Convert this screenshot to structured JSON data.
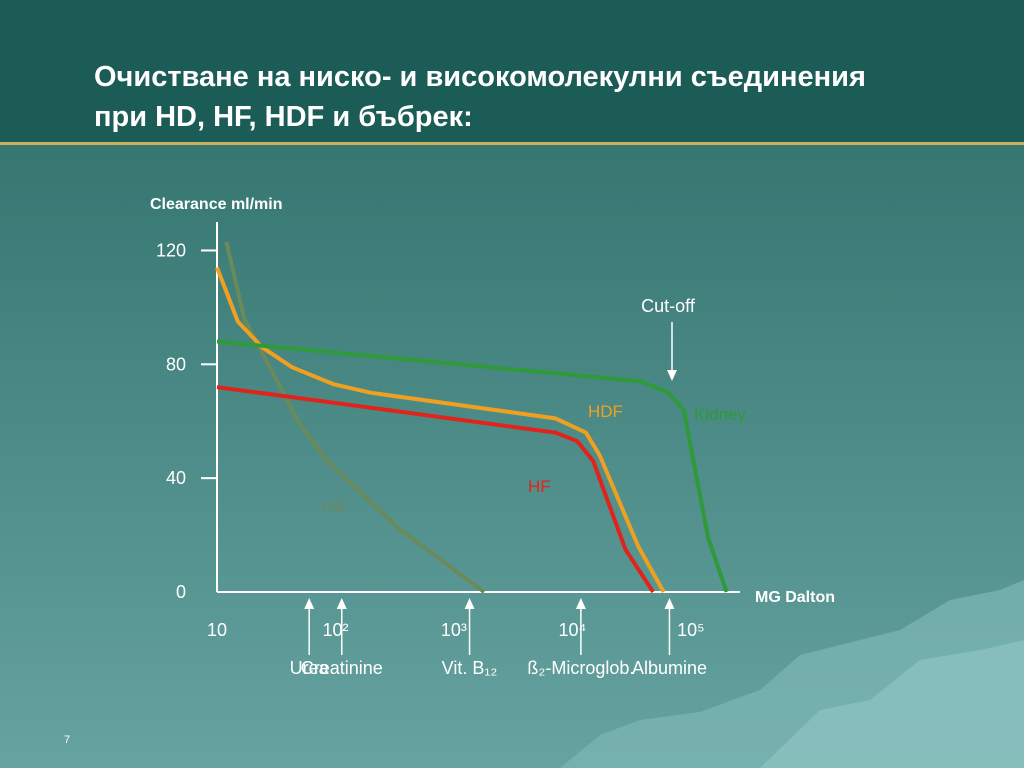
{
  "slide": {
    "title": [
      "Очистване на ниско- и високомолекулни съединения",
      "при  HD, HF, HDF и  бъбрек:"
    ],
    "page_number": "7"
  },
  "chart_data": {
    "type": "line",
    "ylabel": "Clearance ml/min",
    "xlabel": "MG Dalton",
    "xscale": "log",
    "xlim": [
      10,
      260000
    ],
    "ylim": [
      0,
      130
    ],
    "xticks": [
      10,
      {
        "value": 100,
        "label": "10²"
      },
      {
        "value": 1000,
        "label": "10³"
      },
      {
        "value": 10000,
        "label": "10⁴"
      },
      {
        "value": 100000,
        "label": "10⁵"
      }
    ],
    "yticks": [
      0,
      40,
      80,
      120
    ],
    "series": [
      {
        "name": "HD",
        "color": "#6a8a5c",
        "x": [
          12,
          17,
          50,
          85,
          350,
          1800
        ],
        "values": [
          123,
          96,
          59,
          46,
          22,
          0
        ]
      },
      {
        "name": "HDF",
        "color": "#f0a020",
        "x": [
          10,
          15,
          24,
          43,
          96,
          200,
          7200,
          13000,
          17000,
          36000,
          59000
        ],
        "values": [
          114,
          95,
          86,
          79,
          73,
          70,
          61,
          56,
          48,
          16,
          0
        ]
      },
      {
        "name": "HF",
        "color": "#e0241c",
        "x": [
          10,
          7200,
          11000,
          15000,
          28000,
          48000
        ],
        "values": [
          72,
          56,
          53,
          46,
          15,
          0
        ]
      },
      {
        "name": "Kidney",
        "color": "#2e9a3a",
        "x": [
          10,
          38000,
          65000,
          87000,
          140000,
          200000
        ],
        "values": [
          88,
          74,
          70,
          64,
          19,
          0
        ]
      }
    ],
    "annotations": [
      {
        "text": "Cut-off"
      }
    ],
    "markers": [
      {
        "label": "Urea",
        "x": 60
      },
      {
        "label": "Creatinine",
        "x": 113
      },
      {
        "label": "Vit. B₁₂",
        "x": 1355
      },
      {
        "label": "ß₂-Microglob.",
        "x": 11800
      },
      {
        "label": "Albumine",
        "x": 66000
      }
    ]
  }
}
